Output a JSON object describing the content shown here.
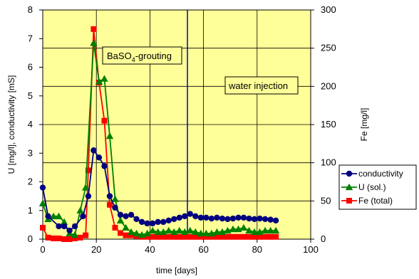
{
  "chart_data": {
    "type": "line",
    "xlabel": "time [days]",
    "ylabel_left": "U [mg/l], conductivity [mS]",
    "ylabel_right": "Fe [mg/l]",
    "xlim": [
      0,
      100
    ],
    "ylim_left": [
      0,
      8
    ],
    "ylim_right": [
      0,
      300
    ],
    "x_ticks": [
      0,
      20,
      40,
      60,
      80,
      100
    ],
    "y_ticks_left": [
      0,
      1,
      2,
      3,
      4,
      5,
      6,
      7,
      8
    ],
    "y_ticks_right": [
      0,
      50,
      100,
      150,
      200,
      250,
      300
    ],
    "grid": true,
    "legend_position": "right",
    "background_color": "#ffff99",
    "annotations": {
      "grouting_prefix": "BaSO",
      "grouting_sub": "4",
      "grouting_suffix": "-grouting",
      "water": "water injection",
      "event_x": 54
    },
    "series": [
      {
        "name": "conductivity",
        "axis": "left",
        "color": "#000080",
        "marker": "circle",
        "x": [
          0,
          2,
          6,
          8,
          10,
          12,
          15,
          17,
          19,
          21,
          23,
          25,
          27,
          29,
          31,
          33,
          35,
          37,
          39,
          41,
          43,
          45,
          47,
          49,
          51,
          53,
          55,
          57,
          59,
          61,
          63,
          65,
          67,
          69,
          71,
          73,
          75,
          77,
          79,
          81,
          83,
          85,
          87
        ],
        "y": [
          1.8,
          0.8,
          0.45,
          0.45,
          0.3,
          0.45,
          0.8,
          1.5,
          3.1,
          2.85,
          2.55,
          1.5,
          1.1,
          0.85,
          0.8,
          0.85,
          0.7,
          0.6,
          0.55,
          0.55,
          0.6,
          0.6,
          0.65,
          0.7,
          0.75,
          0.8,
          0.88,
          0.8,
          0.75,
          0.75,
          0.72,
          0.75,
          0.72,
          0.7,
          0.72,
          0.75,
          0.75,
          0.72,
          0.7,
          0.72,
          0.7,
          0.68,
          0.65
        ]
      },
      {
        "name": "U (sol.)",
        "axis": "left",
        "color": "#008000",
        "marker": "triangle",
        "x": [
          0,
          2,
          4,
          6,
          8,
          10,
          12,
          14,
          16,
          19,
          21,
          23,
          25,
          27,
          29,
          31,
          33,
          35,
          37,
          39,
          41,
          43,
          45,
          47,
          49,
          51,
          53,
          55,
          57,
          59,
          61,
          63,
          65,
          67,
          69,
          71,
          73,
          75,
          77,
          79,
          81,
          83,
          85,
          87
        ],
        "y": [
          1.25,
          0.7,
          0.8,
          0.8,
          0.6,
          0.2,
          0.15,
          1.0,
          1.8,
          6.85,
          5.5,
          5.6,
          3.6,
          1.4,
          0.65,
          0.4,
          0.25,
          0.2,
          0.15,
          0.2,
          0.3,
          0.25,
          0.25,
          0.3,
          0.25,
          0.3,
          0.25,
          0.3,
          0.25,
          0.2,
          0.2,
          0.2,
          0.25,
          0.25,
          0.3,
          0.35,
          0.35,
          0.4,
          0.3,
          0.25,
          0.25,
          0.3,
          0.3,
          0.3
        ]
      },
      {
        "name": "Fe (total)",
        "axis": "right",
        "color": "#ff0000",
        "marker": "square",
        "x": [
          0,
          2,
          4,
          6,
          8,
          10,
          12,
          14,
          16,
          17,
          19,
          21,
          23,
          25,
          27,
          29,
          31,
          33,
          35,
          37,
          39,
          41,
          43,
          45,
          47,
          49,
          51,
          53,
          55,
          57,
          59,
          61,
          63,
          65,
          67,
          69,
          71,
          73,
          75,
          77,
          79,
          81,
          83,
          85,
          87
        ],
        "y": [
          15,
          2,
          1,
          1,
          0,
          0,
          1,
          2,
          5,
          90,
          275,
          205,
          155,
          45,
          15,
          8,
          5,
          5,
          4,
          3,
          3,
          3,
          3,
          3,
          3,
          3,
          3,
          3,
          3,
          3,
          3,
          3,
          3,
          3,
          3,
          3,
          3,
          3,
          3,
          3,
          3,
          3,
          3,
          3,
          3
        ]
      }
    ]
  }
}
